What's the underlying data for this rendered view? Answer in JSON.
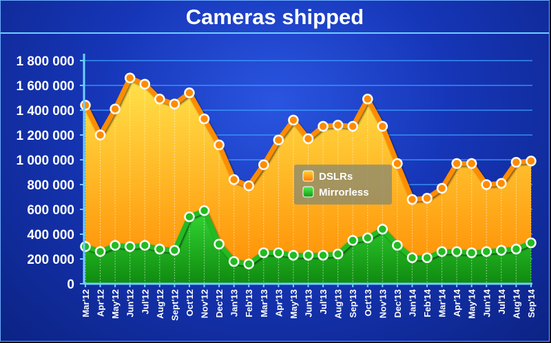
{
  "chart_data": {
    "type": "area",
    "title": "Cameras shipped",
    "xlabel": "",
    "ylabel": "",
    "ylim": [
      0,
      1800000
    ],
    "yticks": [
      0,
      200000,
      400000,
      600000,
      800000,
      1000000,
      1200000,
      1400000,
      1600000,
      1800000
    ],
    "ytick_labels": [
      "0",
      "200 000",
      "400 000",
      "600 000",
      "800 000",
      "1 000 000",
      "1 200 000",
      "1 400 000",
      "1 600 000",
      "1 800 000"
    ],
    "grid": true,
    "legend_position": "center",
    "categories": [
      "Mar'12",
      "Apr'12",
      "May'12",
      "Jun'12",
      "Jul'12",
      "Aug'12",
      "Sept'12",
      "Oct'12",
      "Nov'12",
      "Dec'12",
      "Jan'13",
      "Feb'13",
      "Mar'13",
      "Apr'13",
      "May'13",
      "Jun'13",
      "Jul'13",
      "Aug'13",
      "Sep'13",
      "Oct'13",
      "Nov'13",
      "Dec'13",
      "Jan'14",
      "Feb'14",
      "Mar'14",
      "Apr'14",
      "May'14",
      "Jun'14",
      "Jul'14",
      "Aug'14",
      "Sep'14"
    ],
    "series": [
      {
        "name": "DSLRs",
        "color": "#ff8c00",
        "values": [
          1440000,
          1200000,
          1410000,
          1660000,
          1610000,
          1490000,
          1450000,
          1540000,
          1330000,
          1120000,
          840000,
          790000,
          960000,
          1160000,
          1320000,
          1170000,
          1270000,
          1280000,
          1270000,
          1490000,
          1270000,
          970000,
          680000,
          690000,
          770000,
          970000,
          970000,
          800000,
          810000,
          980000,
          990000
        ]
      },
      {
        "name": "Mirrorless",
        "color": "#22bb22",
        "values": [
          300000,
          260000,
          310000,
          300000,
          310000,
          280000,
          270000,
          540000,
          590000,
          320000,
          180000,
          160000,
          250000,
          250000,
          230000,
          230000,
          230000,
          240000,
          350000,
          370000,
          440000,
          310000,
          210000,
          210000,
          260000,
          260000,
          250000,
          260000,
          270000,
          280000,
          330000
        ]
      }
    ]
  }
}
